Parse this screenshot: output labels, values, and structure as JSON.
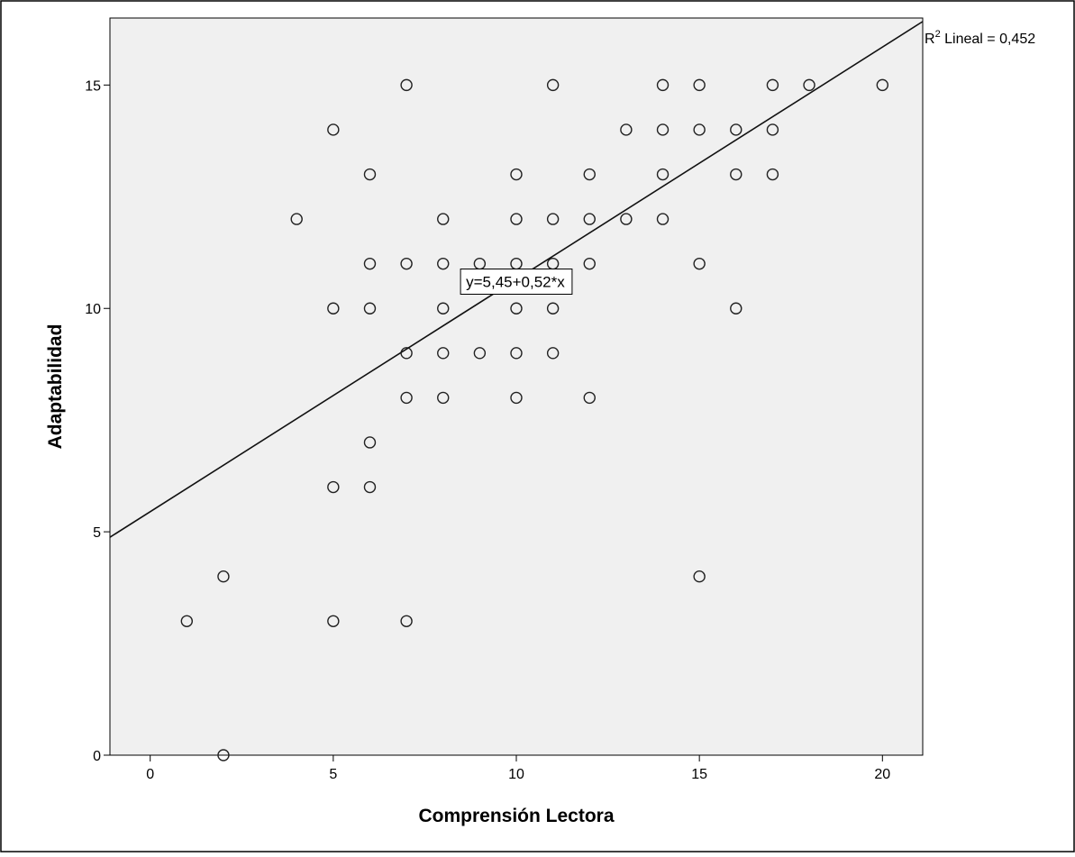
{
  "chart_data": {
    "type": "scatter",
    "xlabel": "Comprensión Lectora",
    "ylabel": "Adaptabilidad",
    "xlim": [
      -1.1,
      21.1
    ],
    "ylim": [
      0,
      16.5
    ],
    "x_ticks": [
      0,
      5,
      10,
      15,
      20
    ],
    "y_ticks": [
      0,
      5,
      10,
      15
    ],
    "grid": false,
    "fit_line": {
      "intercept": 5.45,
      "slope": 0.52,
      "label": "y=5,45+0,52*x",
      "label_at": [
        10,
        10.6
      ]
    },
    "r2_label": {
      "prefix": "R",
      "sup": "2",
      "rest": " Lineal = 0,452"
    },
    "colors": {
      "plot_bg": "#f0f0f0",
      "marker": "#222222",
      "line": "#111111",
      "axis": "#000000"
    },
    "points": [
      [
        1,
        3
      ],
      [
        2,
        4
      ],
      [
        2,
        0
      ],
      [
        4,
        12
      ],
      [
        5,
        14
      ],
      [
        5,
        10
      ],
      [
        5,
        6
      ],
      [
        5,
        3
      ],
      [
        6,
        13
      ],
      [
        6,
        11
      ],
      [
        6,
        10
      ],
      [
        6,
        7
      ],
      [
        6,
        6
      ],
      [
        7,
        15
      ],
      [
        7,
        11
      ],
      [
        7,
        9
      ],
      [
        7,
        8
      ],
      [
        7,
        3
      ],
      [
        8,
        12
      ],
      [
        8,
        11
      ],
      [
        8,
        10
      ],
      [
        8,
        9
      ],
      [
        8,
        8
      ],
      [
        9,
        11
      ],
      [
        9,
        9
      ],
      [
        10,
        13
      ],
      [
        10,
        12
      ],
      [
        10,
        11
      ],
      [
        10,
        10
      ],
      [
        10,
        9
      ],
      [
        10,
        8
      ],
      [
        11,
        15
      ],
      [
        11,
        12
      ],
      [
        11,
        11
      ],
      [
        11,
        10
      ],
      [
        11,
        9
      ],
      [
        12,
        13
      ],
      [
        12,
        12
      ],
      [
        12,
        11
      ],
      [
        12,
        8
      ],
      [
        13,
        14
      ],
      [
        13,
        12
      ],
      [
        14,
        15
      ],
      [
        14,
        14
      ],
      [
        14,
        13
      ],
      [
        14,
        12
      ],
      [
        15,
        15
      ],
      [
        15,
        14
      ],
      [
        15,
        11
      ],
      [
        15,
        4
      ],
      [
        16,
        14
      ],
      [
        16,
        13
      ],
      [
        16,
        10
      ],
      [
        17,
        15
      ],
      [
        17,
        14
      ],
      [
        17,
        13
      ],
      [
        18,
        15
      ],
      [
        20,
        15
      ]
    ]
  }
}
